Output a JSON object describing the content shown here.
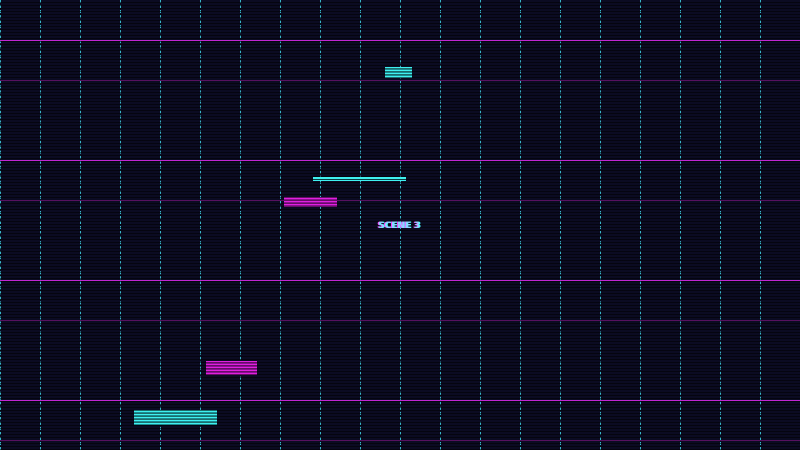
{
  "hud": {
    "scene_label": "SCENE 3"
  },
  "colors": {
    "background": "#0b0b22",
    "grid_vertical": "#3fd6e8",
    "grid_horizontal": "#c026d3",
    "platform_cyan": "#3ff0f0",
    "platform_magenta": "#e020e0"
  },
  "platforms": [
    {
      "color": "cyan"
    },
    {
      "color": "cyan"
    },
    {
      "color": "magenta"
    },
    {
      "color": "magenta"
    },
    {
      "color": "cyan"
    }
  ]
}
